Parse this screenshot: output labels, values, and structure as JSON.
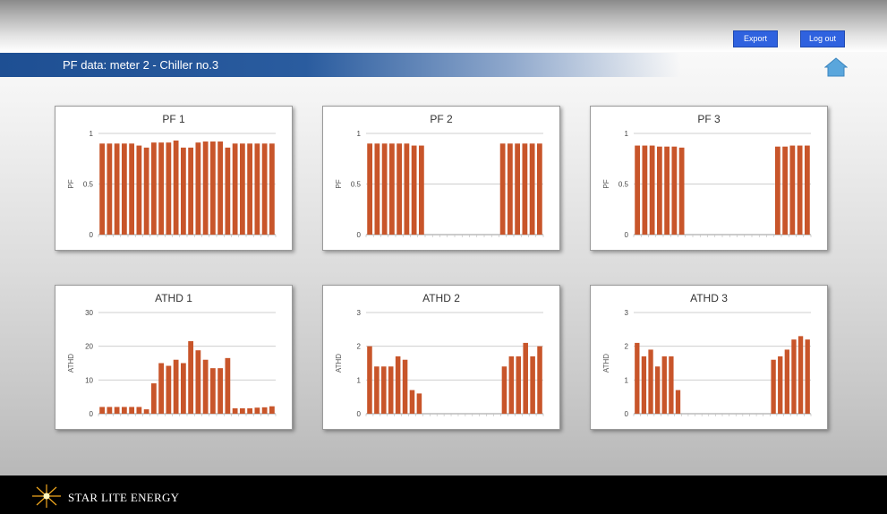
{
  "header": {
    "export_label": "Export",
    "logout_label": "Log out"
  },
  "page": {
    "title": "PF data: meter 2 - Chiller no.3"
  },
  "footer": {
    "brand": "STAR LITE ENERGY"
  },
  "colors": {
    "bar": "#c8552a",
    "accent": "#2f62df",
    "home": "#5aa6dc"
  },
  "chart_data": [
    {
      "type": "bar",
      "title": "PF 1",
      "xlabel": "",
      "ylabel": "PF",
      "ylim": [
        0,
        1
      ],
      "yticks": [
        "0",
        "0.5",
        "1"
      ],
      "grid": true,
      "values": [
        0.9,
        0.9,
        0.9,
        0.9,
        0.9,
        0.88,
        0.86,
        0.91,
        0.91,
        0.91,
        0.93,
        0.86,
        0.86,
        0.91,
        0.92,
        0.92,
        0.92,
        0.86,
        0.9,
        0.9,
        0.9,
        0.9,
        0.9,
        0.9
      ]
    },
    {
      "type": "bar",
      "title": "PF 2",
      "xlabel": "",
      "ylabel": "PF",
      "ylim": [
        0,
        1
      ],
      "yticks": [
        "0",
        "0.5",
        "1"
      ],
      "grid": true,
      "values": [
        0.9,
        0.9,
        0.9,
        0.9,
        0.9,
        0.9,
        0.88,
        0.88,
        0,
        0,
        0,
        0,
        0,
        0,
        0,
        0,
        0,
        0,
        0.9,
        0.9,
        0.9,
        0.9,
        0.9,
        0.9
      ]
    },
    {
      "type": "bar",
      "title": "PF 3",
      "xlabel": "",
      "ylabel": "PF",
      "ylim": [
        0,
        1
      ],
      "yticks": [
        "0",
        "0.5",
        "1"
      ],
      "grid": true,
      "values": [
        0.88,
        0.88,
        0.88,
        0.87,
        0.87,
        0.87,
        0.86,
        0,
        0,
        0,
        0,
        0,
        0,
        0,
        0,
        0,
        0,
        0,
        0,
        0.87,
        0.87,
        0.88,
        0.88,
        0.88
      ]
    },
    {
      "type": "bar",
      "title": "ATHD 1",
      "xlabel": "",
      "ylabel": "ATHD",
      "ylim": [
        0,
        30
      ],
      "yticks": [
        "0",
        "10",
        "20",
        "30"
      ],
      "grid": true,
      "values": [
        2,
        2,
        2,
        2,
        2,
        2,
        1.3,
        9,
        15,
        14.2,
        16,
        15,
        21.5,
        18.8,
        16,
        13.5,
        13.5,
        16.5,
        1.6,
        1.6,
        1.6,
        1.8,
        1.9,
        2.2
      ]
    },
    {
      "type": "bar",
      "title": "ATHD 2",
      "xlabel": "",
      "ylabel": "ATHD",
      "ylim": [
        0,
        3
      ],
      "yticks": [
        "0",
        "1",
        "2",
        "3"
      ],
      "grid": true,
      "values": [
        2,
        1.4,
        1.4,
        1.4,
        1.7,
        1.6,
        0.7,
        0.6,
        0,
        0,
        0,
        0,
        0,
        0,
        0,
        0,
        0,
        0,
        0,
        1.4,
        1.7,
        1.7,
        2.1,
        1.7,
        2
      ]
    },
    {
      "type": "bar",
      "title": "ATHD 3",
      "xlabel": "",
      "ylabel": "ATHD",
      "ylim": [
        0,
        3
      ],
      "yticks": [
        "0",
        "1",
        "2",
        "3"
      ],
      "grid": true,
      "values": [
        2.1,
        1.7,
        1.9,
        1.4,
        1.7,
        1.7,
        0.7,
        0,
        0,
        0,
        0,
        0,
        0,
        0,
        0,
        0,
        0,
        0,
        0,
        0,
        1.6,
        1.7,
        1.9,
        2.2,
        2.3,
        2.2
      ]
    }
  ]
}
